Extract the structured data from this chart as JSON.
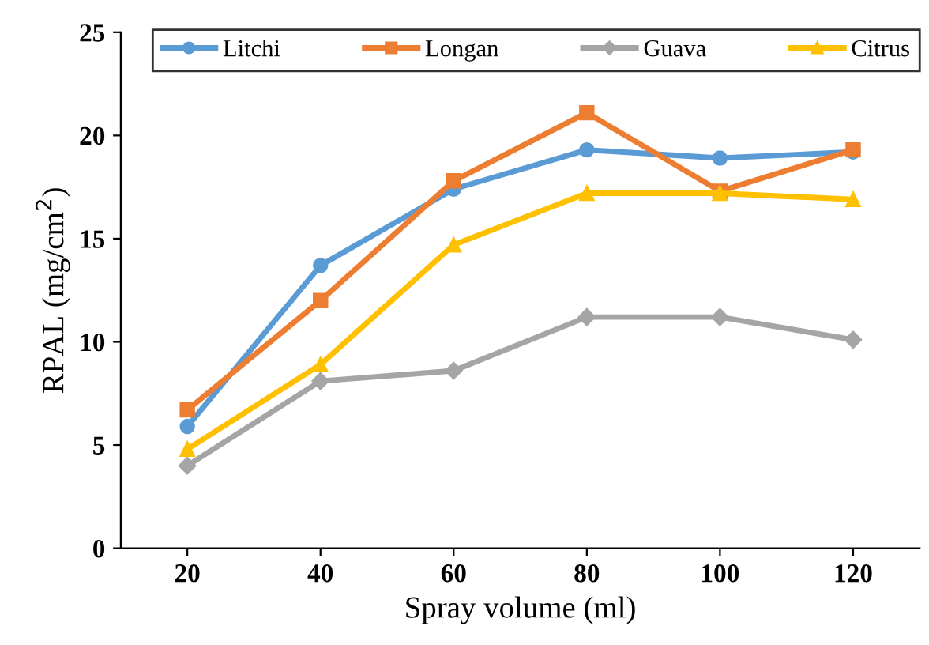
{
  "chart_data": {
    "type": "line",
    "xlabel": "Spray volume (ml)",
    "ylabel": "RPAL (mg/cm$^{2}$)",
    "x": [
      20,
      40,
      60,
      80,
      100,
      120
    ],
    "series": [
      {
        "name": "Litchi",
        "color": "#5b9bd5",
        "marker": "circle",
        "values": [
          5.9,
          13.7,
          17.4,
          19.3,
          18.9,
          19.2
        ]
      },
      {
        "name": "Longan",
        "color": "#ed7d31",
        "marker": "square",
        "values": [
          6.7,
          12.0,
          17.8,
          21.1,
          17.3,
          19.3
        ]
      },
      {
        "name": "Guava",
        "color": "#a5a5a5",
        "marker": "diamond",
        "values": [
          4.0,
          8.1,
          8.6,
          11.2,
          11.2,
          10.1
        ]
      },
      {
        "name": "Citrus",
        "color": "#ffc000",
        "marker": "triangle",
        "values": [
          4.8,
          8.9,
          14.7,
          17.2,
          17.2,
          16.9
        ]
      }
    ],
    "xlim": [
      10,
      130
    ],
    "xticks": [
      20,
      40,
      60,
      80,
      100,
      120
    ],
    "ylim": [
      0,
      25
    ],
    "yticks": [
      0,
      5,
      10,
      15,
      20,
      25
    ],
    "grid": false,
    "legend": "top",
    "line_style": "solid"
  }
}
